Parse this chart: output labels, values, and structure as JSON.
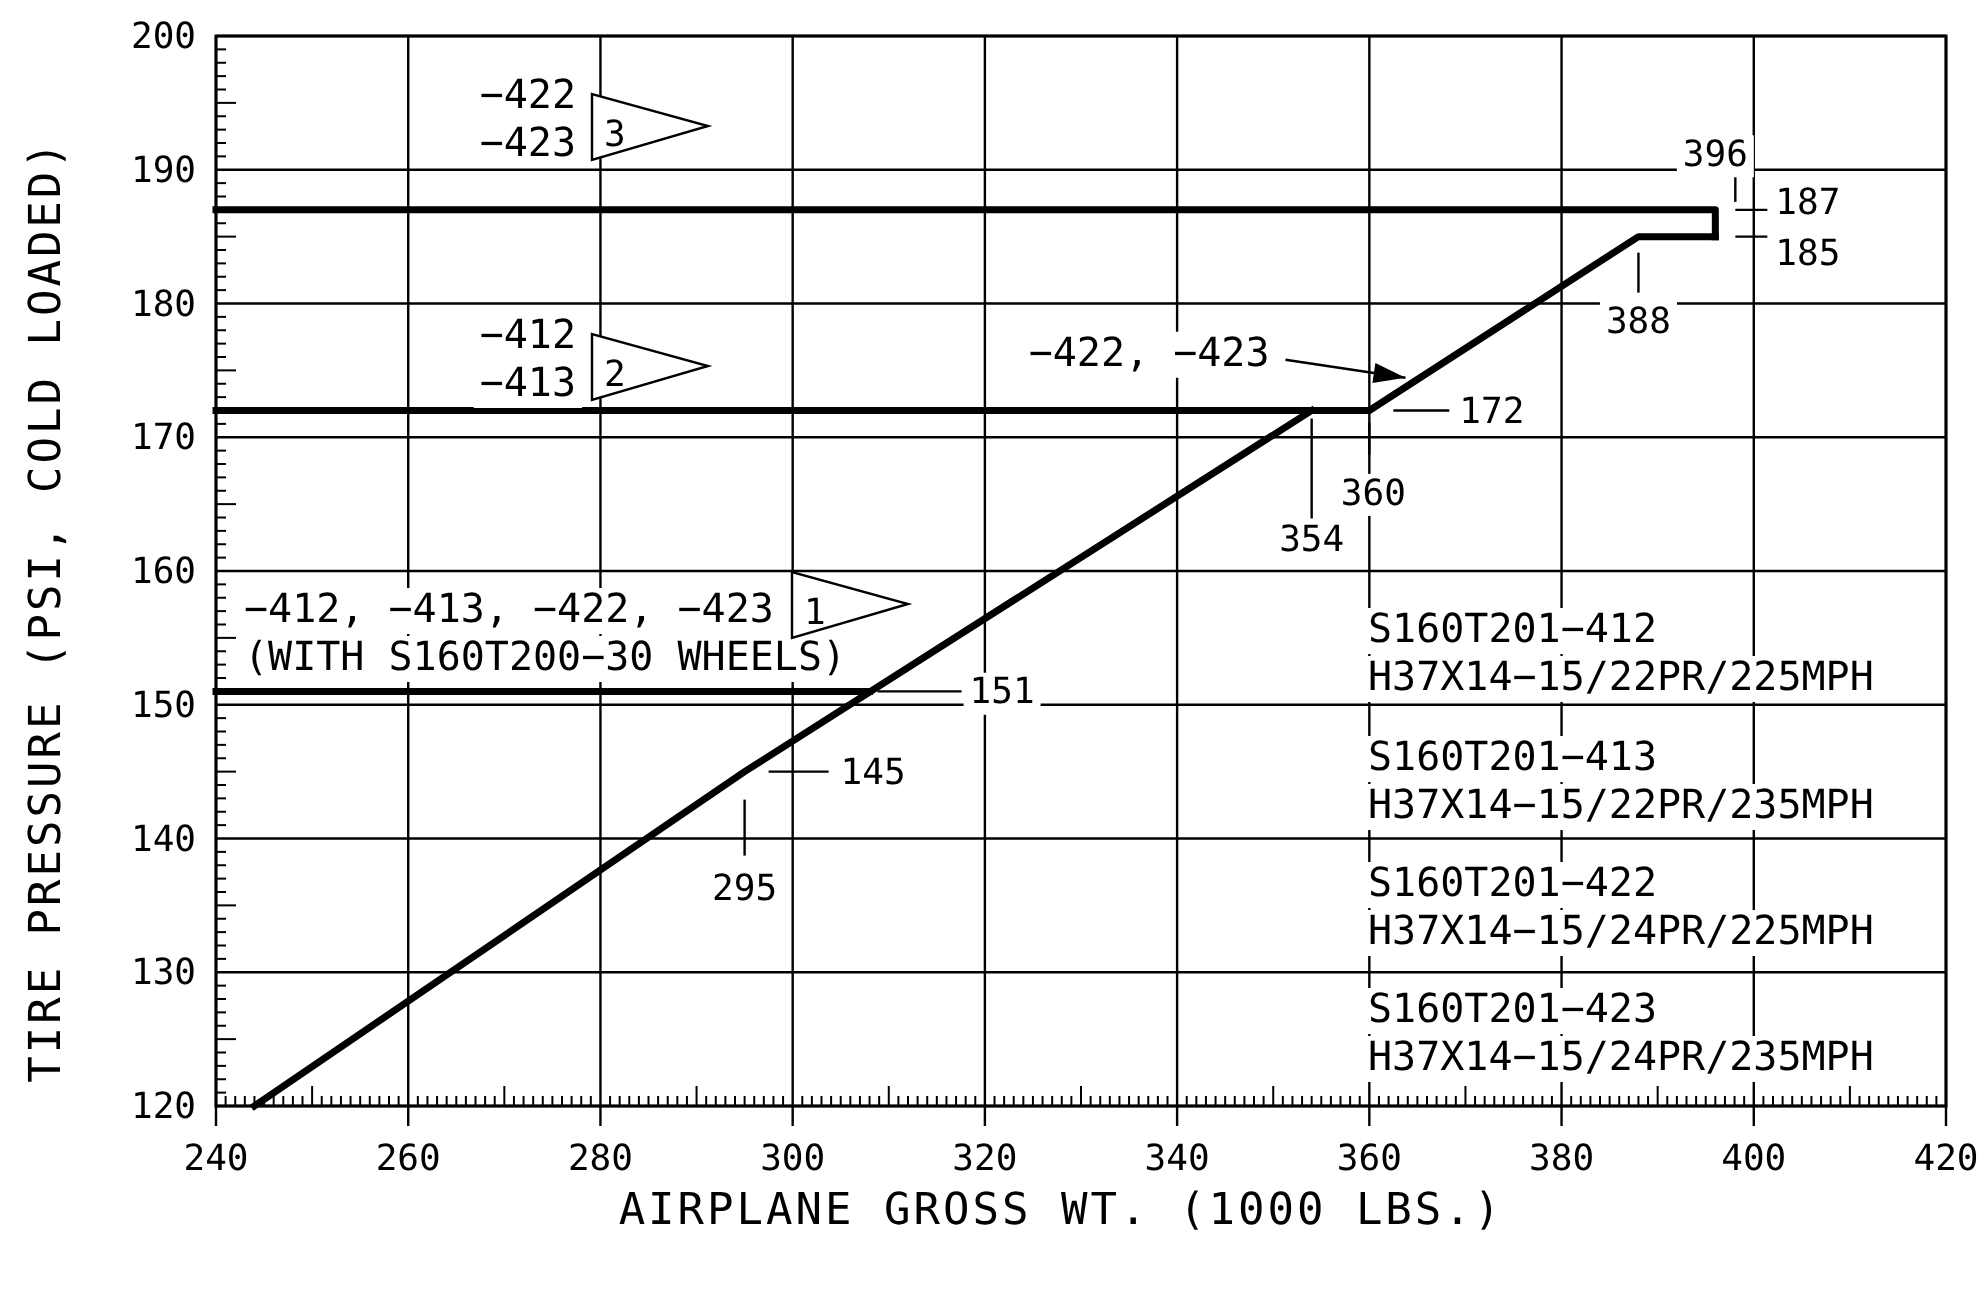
{
  "chart_data": {
    "type": "line",
    "xlabel": "AIRPLANE GROSS WT. (1000 LBS.)",
    "ylabel": "TIRE PRESSURE (PSI, COLD LOADED)",
    "xlim": [
      240,
      420
    ],
    "ylim": [
      120,
      200
    ],
    "grid": true,
    "marker": "none",
    "line_style": "solid",
    "xticks": [
      240,
      260,
      280,
      300,
      320,
      340,
      360,
      380,
      400,
      420,
      {
        "value": 241,
        "label": null
      },
      {
        "value": 242,
        "label": null
      },
      {
        "value": 243,
        "label": null
      },
      {
        "value": 244,
        "label": null
      },
      {
        "value": 245,
        "label": null
      },
      {
        "value": 246,
        "label": null
      },
      {
        "value": 247,
        "label": null
      },
      {
        "value": 248,
        "label": null
      },
      {
        "value": 249,
        "label": null
      },
      {
        "value": 250,
        "label": null
      },
      {
        "value": 251,
        "label": null
      },
      {
        "value": 252,
        "label": null
      },
      {
        "value": 253,
        "label": null
      },
      {
        "value": 254,
        "label": null
      },
      {
        "value": 255,
        "label": null
      },
      {
        "value": 256,
        "label": null
      },
      {
        "value": 257,
        "label": null
      },
      {
        "value": 258,
        "label": null
      },
      {
        "value": 259,
        "label": null
      },
      {
        "value": 261,
        "label": null
      },
      {
        "value": 262,
        "label": null
      },
      {
        "value": 263,
        "label": null
      },
      {
        "value": 264,
        "label": null
      },
      {
        "value": 265,
        "label": null
      },
      {
        "value": 266,
        "label": null
      },
      {
        "value": 267,
        "label": null
      },
      {
        "value": 268,
        "label": null
      },
      {
        "value": 269,
        "label": null
      },
      {
        "value": 270,
        "label": null
      },
      {
        "value": 271,
        "label": null
      },
      {
        "value": 272,
        "label": null
      },
      {
        "value": 273,
        "label": null
      },
      {
        "value": 274,
        "label": null
      },
      {
        "value": 275,
        "label": null
      },
      {
        "value": 276,
        "label": null
      },
      {
        "value": 277,
        "label": null
      },
      {
        "value": 278,
        "label": null
      },
      {
        "value": 279,
        "label": null
      },
      {
        "value": 281,
        "label": null
      },
      {
        "value": 282,
        "label": null
      },
      {
        "value": 283,
        "label": null
      },
      {
        "value": 284,
        "label": null
      },
      {
        "value": 285,
        "label": null
      },
      {
        "value": 286,
        "label": null
      },
      {
        "value": 287,
        "label": null
      },
      {
        "value": 288,
        "label": null
      },
      {
        "value": 289,
        "label": null
      },
      {
        "value": 290,
        "label": null
      },
      {
        "value": 291,
        "label": null
      },
      {
        "value": 292,
        "label": null
      },
      {
        "value": 293,
        "label": null
      },
      {
        "value": 294,
        "label": null
      },
      {
        "value": 295,
        "label": null
      },
      {
        "value": 296,
        "label": null
      },
      {
        "value": 297,
        "label": null
      },
      {
        "value": 298,
        "label": null
      },
      {
        "value": 299,
        "label": null
      },
      {
        "value": 301,
        "label": null
      },
      {
        "value": 302,
        "label": null
      },
      {
        "value": 303,
        "label": null
      },
      {
        "value": 304,
        "label": null
      },
      {
        "value": 305,
        "label": null
      },
      {
        "value": 306,
        "label": null
      },
      {
        "value": 307,
        "label": null
      },
      {
        "value": 308,
        "label": null
      },
      {
        "value": 309,
        "label": null
      },
      {
        "value": 310,
        "label": null
      },
      {
        "value": 311,
        "label": null
      },
      {
        "value": 312,
        "label": null
      },
      {
        "value": 313,
        "label": null
      },
      {
        "value": 314,
        "label": null
      },
      {
        "value": 315,
        "label": null
      },
      {
        "value": 316,
        "label": null
      },
      {
        "value": 317,
        "label": null
      },
      {
        "value": 318,
        "label": null
      },
      {
        "value": 319,
        "label": null
      },
      {
        "value": 321,
        "label": null
      },
      {
        "value": 322,
        "label": null
      },
      {
        "value": 323,
        "label": null
      },
      {
        "value": 324,
        "label": null
      },
      {
        "value": 325,
        "label": null
      },
      {
        "value": 326,
        "label": null
      },
      {
        "value": 327,
        "label": null
      },
      {
        "value": 328,
        "label": null
      },
      {
        "value": 329,
        "label": null
      },
      {
        "value": 330,
        "label": null
      },
      {
        "value": 331,
        "label": null
      },
      {
        "value": 332,
        "label": null
      },
      {
        "value": 333,
        "label": null
      },
      {
        "value": 334,
        "label": null
      },
      {
        "value": 335,
        "label": null
      },
      {
        "value": 336,
        "label": null
      },
      {
        "value": 337,
        "label": null
      },
      {
        "value": 338,
        "label": null
      },
      {
        "value": 339,
        "label": null
      },
      {
        "value": 341,
        "label": null
      },
      {
        "value": 342,
        "label": null
      },
      {
        "value": 343,
        "label": null
      },
      {
        "value": 344,
        "label": null
      },
      {
        "value": 345,
        "label": null
      },
      {
        "value": 346,
        "label": null
      },
      {
        "value": 347,
        "label": null
      },
      {
        "value": 348,
        "label": null
      },
      {
        "value": 349,
        "label": null
      },
      {
        "value": 350,
        "label": null
      },
      {
        "value": 351,
        "label": null
      },
      {
        "value": 352,
        "label": null
      },
      {
        "value": 353,
        "label": null
      },
      {
        "value": 354,
        "label": null
      },
      {
        "value": 355,
        "label": null
      },
      {
        "value": 356,
        "label": null
      },
      {
        "value": 357,
        "label": null
      },
      {
        "value": 358,
        "label": null
      },
      {
        "value": 359,
        "label": null
      },
      {
        "value": 361,
        "label": null
      },
      {
        "value": 362,
        "label": null
      },
      {
        "value": 363,
        "label": null
      },
      {
        "value": 364,
        "label": null
      },
      {
        "value": 365,
        "label": null
      },
      {
        "value": 366,
        "label": null
      },
      {
        "value": 367,
        "label": null
      },
      {
        "value": 368,
        "label": null
      },
      {
        "value": 369,
        "label": null
      },
      {
        "value": 370,
        "label": null
      },
      {
        "value": 371,
        "label": null
      },
      {
        "value": 372,
        "label": null
      },
      {
        "value": 373,
        "label": null
      },
      {
        "value": 374,
        "label": null
      },
      {
        "value": 375,
        "label": null
      },
      {
        "value": 376,
        "label": null
      },
      {
        "value": 377,
        "label": null
      },
      {
        "value": 378,
        "label": null
      },
      {
        "value": 379,
        "label": null
      },
      {
        "value": 381,
        "label": null
      },
      {
        "value": 382,
        "label": null
      },
      {
        "value": 383,
        "label": null
      },
      {
        "value": 384,
        "label": null
      },
      {
        "value": 385,
        "label": null
      },
      {
        "value": 386,
        "label": null
      },
      {
        "value": 387,
        "label": null
      },
      {
        "value": 388,
        "label": null
      },
      {
        "value": 389,
        "label": null
      },
      {
        "value": 390,
        "label": null
      },
      {
        "value": 391,
        "label": null
      },
      {
        "value": 392,
        "label": null
      },
      {
        "value": 393,
        "label": null
      },
      {
        "value": 394,
        "label": null
      },
      {
        "value": 395,
        "label": null
      },
      {
        "value": 396,
        "label": null
      },
      {
        "value": 397,
        "label": null
      },
      {
        "value": 398,
        "label": null
      },
      {
        "value": 399,
        "label": null
      },
      {
        "value": 401,
        "label": null
      },
      {
        "value": 402,
        "label": null
      },
      {
        "value": 403,
        "label": null
      },
      {
        "value": 404,
        "label": null
      },
      {
        "value": 405,
        "label": null
      },
      {
        "value": 406,
        "label": null
      },
      {
        "value": 407,
        "label": null
      },
      {
        "value": 408,
        "label": null
      },
      {
        "value": 409,
        "label": null
      },
      {
        "value": 410,
        "label": null
      },
      {
        "value": 411,
        "label": null
      },
      {
        "value": 412,
        "label": null
      },
      {
        "value": 413,
        "label": null
      },
      {
        "value": 414,
        "label": null
      },
      {
        "value": 415,
        "label": null
      },
      {
        "value": 416,
        "label": null
      },
      {
        "value": 417,
        "label": null
      },
      {
        "value": 418,
        "label": null
      },
      {
        "value": 419,
        "label": null
      }
    ],
    "yticks": [
      120,
      130,
      140,
      150,
      160,
      170,
      180,
      190,
      200,
      {
        "value": 121,
        "label": null
      },
      {
        "value": 122,
        "label": null
      },
      {
        "value": 123,
        "label": null
      },
      {
        "value": 124,
        "label": null
      },
      {
        "value": 125,
        "label": null
      },
      {
        "value": 126,
        "label": null
      },
      {
        "value": 127,
        "label": null
      },
      {
        "value": 128,
        "label": null
      },
      {
        "value": 129,
        "label": null
      },
      {
        "value": 131,
        "label": null
      },
      {
        "value": 132,
        "label": null
      },
      {
        "value": 133,
        "label": null
      },
      {
        "value": 134,
        "label": null
      },
      {
        "value": 135,
        "label": null
      },
      {
        "value": 136,
        "label": null
      },
      {
        "value": 137,
        "label": null
      },
      {
        "value": 138,
        "label": null
      },
      {
        "value": 139,
        "label": null
      },
      {
        "value": 141,
        "label": null
      },
      {
        "value": 142,
        "label": null
      },
      {
        "value": 143,
        "label": null
      },
      {
        "value": 144,
        "label": null
      },
      {
        "value": 145,
        "label": null
      },
      {
        "value": 146,
        "label": null
      },
      {
        "value": 147,
        "label": null
      },
      {
        "value": 148,
        "label": null
      },
      {
        "value": 149,
        "label": null
      },
      {
        "value": 151,
        "label": null
      },
      {
        "value": 152,
        "label": null
      },
      {
        "value": 153,
        "label": null
      },
      {
        "value": 154,
        "label": null
      },
      {
        "value": 155,
        "label": null
      },
      {
        "value": 156,
        "label": null
      },
      {
        "value": 157,
        "label": null
      },
      {
        "value": 158,
        "label": null
      },
      {
        "value": 159,
        "label": null
      },
      {
        "value": 161,
        "label": null
      },
      {
        "value": 162,
        "label": null
      },
      {
        "value": 163,
        "label": null
      },
      {
        "value": 164,
        "label": null
      },
      {
        "value": 165,
        "label": null
      },
      {
        "value": 166,
        "label": null
      },
      {
        "value": 167,
        "label": null
      },
      {
        "value": 168,
        "label": null
      },
      {
        "value": 169,
        "label": null
      },
      {
        "value": 171,
        "label": null
      },
      {
        "value": 172,
        "label": null
      },
      {
        "value": 173,
        "label": null
      },
      {
        "value": 174,
        "label": null
      },
      {
        "value": 175,
        "label": null
      },
      {
        "value": 176,
        "label": null
      },
      {
        "value": 177,
        "label": null
      },
      {
        "value": 178,
        "label": null
      },
      {
        "value": 179,
        "label": null
      },
      {
        "value": 181,
        "label": null
      },
      {
        "value": 182,
        "label": null
      },
      {
        "value": 183,
        "label": null
      },
      {
        "value": 184,
        "label": null
      },
      {
        "value": 185,
        "label": null
      },
      {
        "value": 186,
        "label": null
      },
      {
        "value": 187,
        "label": null
      },
      {
        "value": 188,
        "label": null
      },
      {
        "value": 189,
        "label": null
      },
      {
        "value": 191,
        "label": null
      },
      {
        "value": 192,
        "label": null
      },
      {
        "value": 193,
        "label": null
      },
      {
        "value": 194,
        "label": null
      },
      {
        "value": 195,
        "label": null
      },
      {
        "value": 196,
        "label": null
      },
      {
        "value": 197,
        "label": null
      },
      {
        "value": 198,
        "label": null
      },
      {
        "value": 199,
        "label": null
      }
    ],
    "series": [
      {
        "color": "#000000",
        "x": [
          240,
          308
        ],
        "values": [
          151,
          151
        ]
      },
      {
        "color": "#000000",
        "x": [
          244,
          295,
          354
        ],
        "values": [
          120,
          145,
          172
        ]
      },
      {
        "color": "#000000",
        "x": [
          240,
          360,
          388,
          396
        ],
        "values": [
          172,
          172,
          185,
          185
        ]
      },
      {
        "color": "#000000",
        "x": [
          240,
          396,
          396
        ],
        "values": [
          187,
          187,
          185
        ]
      }
    ],
    "annotations": [
      {
        "text": "396",
        "x": 396,
        "y": 187
      },
      {
        "text": "187",
        "x": 396,
        "y": 187
      },
      {
        "text": "185",
        "x": 396,
        "y": 185
      },
      {
        "text": "388",
        "x": 388,
        "y": 185
      },
      {
        "text": "172",
        "x": 360,
        "y": 172
      },
      {
        "text": "360",
        "x": 360,
        "y": 172
      },
      {
        "text": "354",
        "x": 354,
        "y": 172
      },
      {
        "text": "151",
        "x": 308,
        "y": 151
      },
      {
        "text": "145",
        "x": 295,
        "y": 145
      },
      {
        "text": "295",
        "x": 295,
        "y": 145
      },
      {
        "text": "−422, −423",
        "x": 364.6,
        "y": 174.3
      },
      "−422\n−423",
      "3",
      "−412\n−413",
      "2",
      "−412, −413, −422, −423\n(WITH S160T200−30 WHEELS)",
      "1",
      "S160T201−412\nH37X14−15/22PR/225MPH",
      "S160T201−413\nH37X14−15/22PR/235MPH",
      "S160T201−422\nH37X14−15/24PR/225MPH",
      "S160T201−423\nH37X14−15/24PR/235MPH"
    ]
  }
}
